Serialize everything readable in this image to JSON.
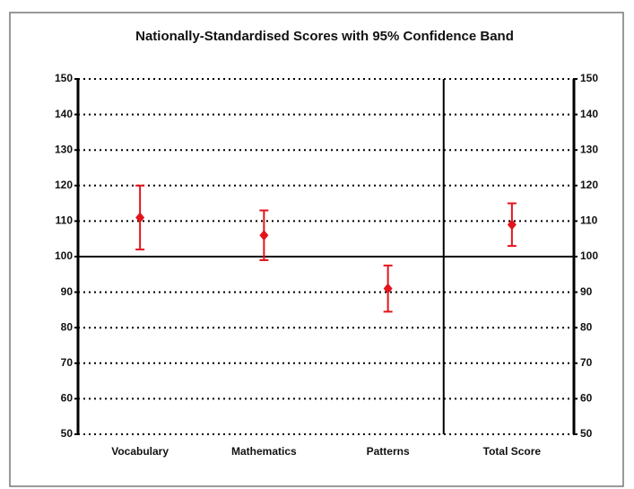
{
  "chart_data": {
    "type": "errorbar",
    "title": "Nationally-Standardised Scores with 95% Confidence Band",
    "categories": [
      "Vocabulary",
      "Mathematics",
      "Patterns",
      "Total Score"
    ],
    "values": [
      111,
      106,
      91,
      109
    ],
    "errors": [
      9,
      7,
      6.5,
      6
    ],
    "color": "#e3141b",
    "ylim": [
      50,
      150
    ],
    "yticks": [
      50,
      60,
      70,
      80,
      90,
      100,
      110,
      120,
      130,
      140,
      150
    ],
    "y2lim": [
      50,
      150
    ],
    "y2ticks": [
      50,
      60,
      70,
      80,
      90,
      100,
      110,
      120,
      130,
      140,
      150
    ],
    "reference_line": 100,
    "grid": true
  }
}
